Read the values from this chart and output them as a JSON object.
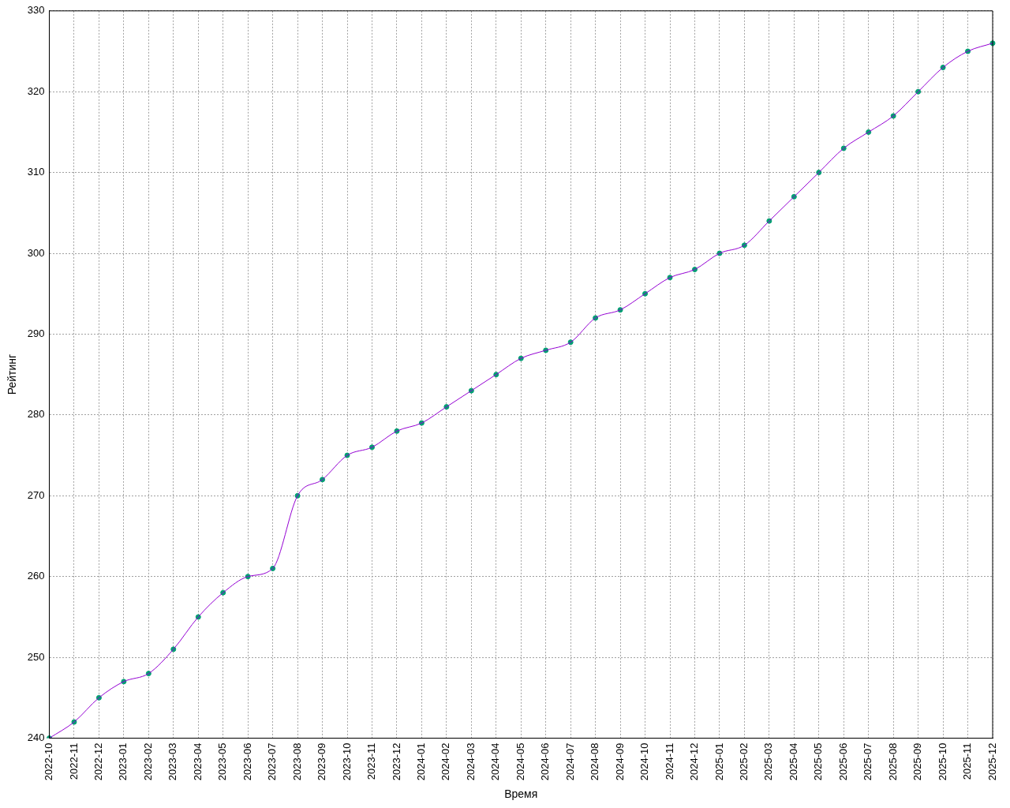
{
  "chart_data": {
    "type": "line",
    "xlabel": "Время",
    "ylabel": "Рейтинг",
    "categories": [
      "2022-10",
      "2022-11",
      "2022-12",
      "2023-01",
      "2023-02",
      "2023-03",
      "2023-04",
      "2023-05",
      "2023-06",
      "2023-07",
      "2023-08",
      "2023-09",
      "2023-10",
      "2023-11",
      "2023-12",
      "2024-01",
      "2024-02",
      "2024-03",
      "2024-04",
      "2024-05",
      "2024-06",
      "2024-07",
      "2024-08",
      "2024-09",
      "2024-10",
      "2024-11",
      "2024-12",
      "2025-01",
      "2025-02",
      "2025-03",
      "2025-04",
      "2025-05",
      "2025-06",
      "2025-07",
      "2025-08",
      "2025-09",
      "2025-10",
      "2025-11",
      "2025-12"
    ],
    "series": [
      {
        "type": "line",
        "color": "#9400d3",
        "marker": "none",
        "values": [
          240,
          242,
          245,
          247,
          248,
          251,
          255,
          258,
          260,
          261,
          270,
          272,
          275,
          276,
          278,
          279,
          281,
          283,
          285,
          287,
          288,
          289,
          292,
          293,
          295,
          297,
          298,
          300,
          301,
          304,
          307,
          310,
          313,
          315,
          317,
          320,
          323,
          325,
          326
        ]
      },
      {
        "type": "scatter",
        "color": "#009e73",
        "marker": "circle",
        "values": [
          240,
          242,
          245,
          247,
          248,
          251,
          255,
          258,
          260,
          261,
          270,
          272,
          275,
          276,
          278,
          279,
          281,
          283,
          285,
          287,
          288,
          289,
          292,
          293,
          295,
          297,
          298,
          300,
          301,
          304,
          307,
          310,
          313,
          315,
          317,
          320,
          323,
          325,
          326
        ]
      }
    ],
    "ylim": [
      240,
      330
    ],
    "yticks": [
      240,
      250,
      260,
      270,
      280,
      290,
      300,
      310,
      320,
      330
    ],
    "grid": true,
    "legend": false
  }
}
